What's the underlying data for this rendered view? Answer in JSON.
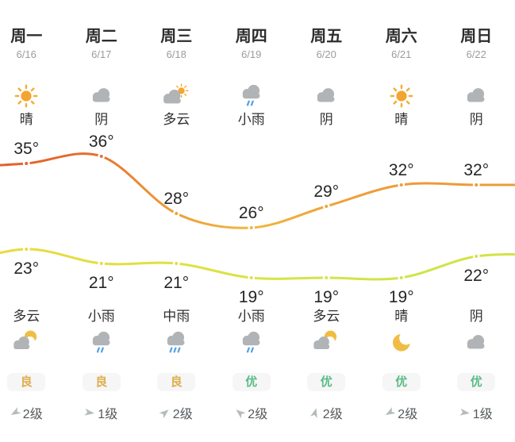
{
  "colors": {
    "cloud_gray": "#b1b4b6",
    "sun_orange": "#f2a530",
    "sun_ray_orange": "#f3ae3a",
    "rain_blue": "#58a0e6",
    "moon_yellow": "#f0bd44",
    "aqi_good_color": "#dfae4b",
    "aqi_excellent_color": "#5abc84",
    "badge_bg": "#f6f6f7",
    "wind_arrow_gray": "#b5bcbf",
    "high_line_gradient": [
      [
        0,
        "#e2612c"
      ],
      [
        0.18,
        "#e66d2e"
      ],
      [
        0.34,
        "#eda039"
      ],
      [
        0.49,
        "#f0b840"
      ],
      [
        0.63,
        "#eea43b"
      ],
      [
        0.78,
        "#ee9b37"
      ],
      [
        1,
        "#ee9b37"
      ]
    ],
    "low_line_gradient": [
      [
        0,
        "#e9da3e"
      ],
      [
        0.25,
        "#e3df41"
      ],
      [
        0.5,
        "#d8e445"
      ],
      [
        0.8,
        "#cfe447"
      ],
      [
        1,
        "#d5e145"
      ]
    ]
  },
  "columns": [
    {
      "day": "周一",
      "date": "6/16",
      "day_condition": "晴",
      "day_icon": "sun-icon",
      "high": "35°",
      "low": "23°",
      "night_condition": "多云",
      "night_icon": "cloud-moon-icon",
      "aqi": "良",
      "aqi_level": "good",
      "wind": "2级",
      "wind_dir_deg": 150
    },
    {
      "day": "周二",
      "date": "6/17",
      "day_condition": "阴",
      "day_icon": "cloud-icon",
      "high": "36°",
      "low": "21°",
      "night_condition": "小雨",
      "night_icon": "light-rain-icon",
      "aqi": "良",
      "aqi_level": "good",
      "wind": "1级",
      "wind_dir_deg": 8
    },
    {
      "day": "周三",
      "date": "6/18",
      "day_condition": "多云",
      "day_icon": "partly-cloudy-icon",
      "high": "28°",
      "low": "21°",
      "night_condition": "中雨",
      "night_icon": "moderate-rain-icon",
      "aqi": "良",
      "aqi_level": "good",
      "wind": "2级",
      "wind_dir_deg": -40
    },
    {
      "day": "周四",
      "date": "6/19",
      "day_condition": "小雨",
      "day_icon": "light-rain-icon",
      "high": "26°",
      "low": "19°",
      "night_condition": "小雨",
      "night_icon": "light-rain-icon",
      "aqi": "优",
      "aqi_level": "excellent",
      "wind": "2级",
      "wind_dir_deg": -140
    },
    {
      "day": "周五",
      "date": "6/20",
      "day_condition": "阴",
      "day_icon": "cloud-icon",
      "high": "29°",
      "low": "19°",
      "night_condition": "多云",
      "night_icon": "cloud-moon-icon",
      "aqi": "优",
      "aqi_level": "excellent",
      "wind": "2级",
      "wind_dir_deg": -75
    },
    {
      "day": "周六",
      "date": "6/21",
      "day_condition": "晴",
      "day_icon": "sun-icon",
      "high": "32°",
      "low": "19°",
      "night_condition": "晴",
      "night_icon": "moon-icon",
      "aqi": "优",
      "aqi_level": "excellent",
      "wind": "2级",
      "wind_dir_deg": 150
    },
    {
      "day": "周日",
      "date": "6/22",
      "day_condition": "阴",
      "day_icon": "cloud-icon",
      "high": "32°",
      "low": "22°",
      "night_condition": "阴",
      "night_icon": "cloud-icon",
      "aqi": "优",
      "aqi_level": "excellent",
      "wind": "1级",
      "wind_dir_deg": 8
    }
  ],
  "chart_data": {
    "type": "line",
    "categories": [
      "周一",
      "周二",
      "周三",
      "周四",
      "周五",
      "周六",
      "周日"
    ],
    "series": [
      {
        "name": "high_temp",
        "values": [
          35,
          36,
          28,
          26,
          29,
          32,
          32
        ]
      },
      {
        "name": "low_temp",
        "values": [
          23,
          21,
          21,
          19,
          19,
          19,
          22
        ]
      }
    ],
    "unit": "°",
    "legend": "none",
    "grid": false,
    "point_labels": true
  }
}
